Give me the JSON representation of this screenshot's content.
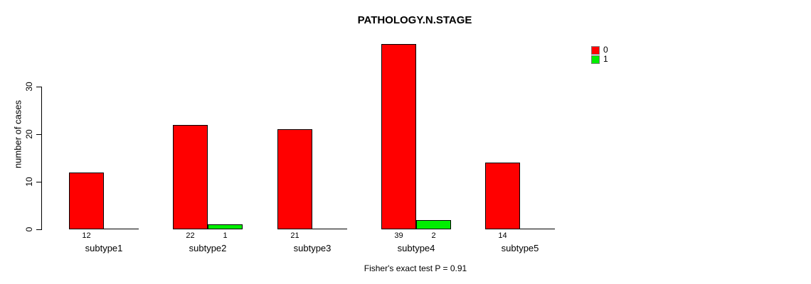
{
  "chart_data": {
    "type": "bar",
    "title": "PATHOLOGY.N.STAGE",
    "ylabel": "number of cases",
    "xlabel": "",
    "categories": [
      "subtype1",
      "subtype2",
      "subtype3",
      "subtype4",
      "subtype5"
    ],
    "series": [
      {
        "name": "0",
        "color": "#FF0000",
        "values": [
          12,
          22,
          21,
          39,
          14
        ]
      },
      {
        "name": "1",
        "color": "#00EE00",
        "values": [
          0,
          1,
          0,
          2,
          0
        ]
      }
    ],
    "bar_value_labels": {
      "series_0": [
        "12",
        "22",
        "21",
        "39",
        "14"
      ],
      "series_1": [
        "",
        "1",
        "",
        "2",
        ""
      ]
    },
    "yticks": [
      "0",
      "10",
      "20",
      "30"
    ],
    "ylim": [
      0,
      40
    ],
    "grid": false,
    "legend_position": "right",
    "annotation": "Fisher's exact test P = 0.91"
  }
}
